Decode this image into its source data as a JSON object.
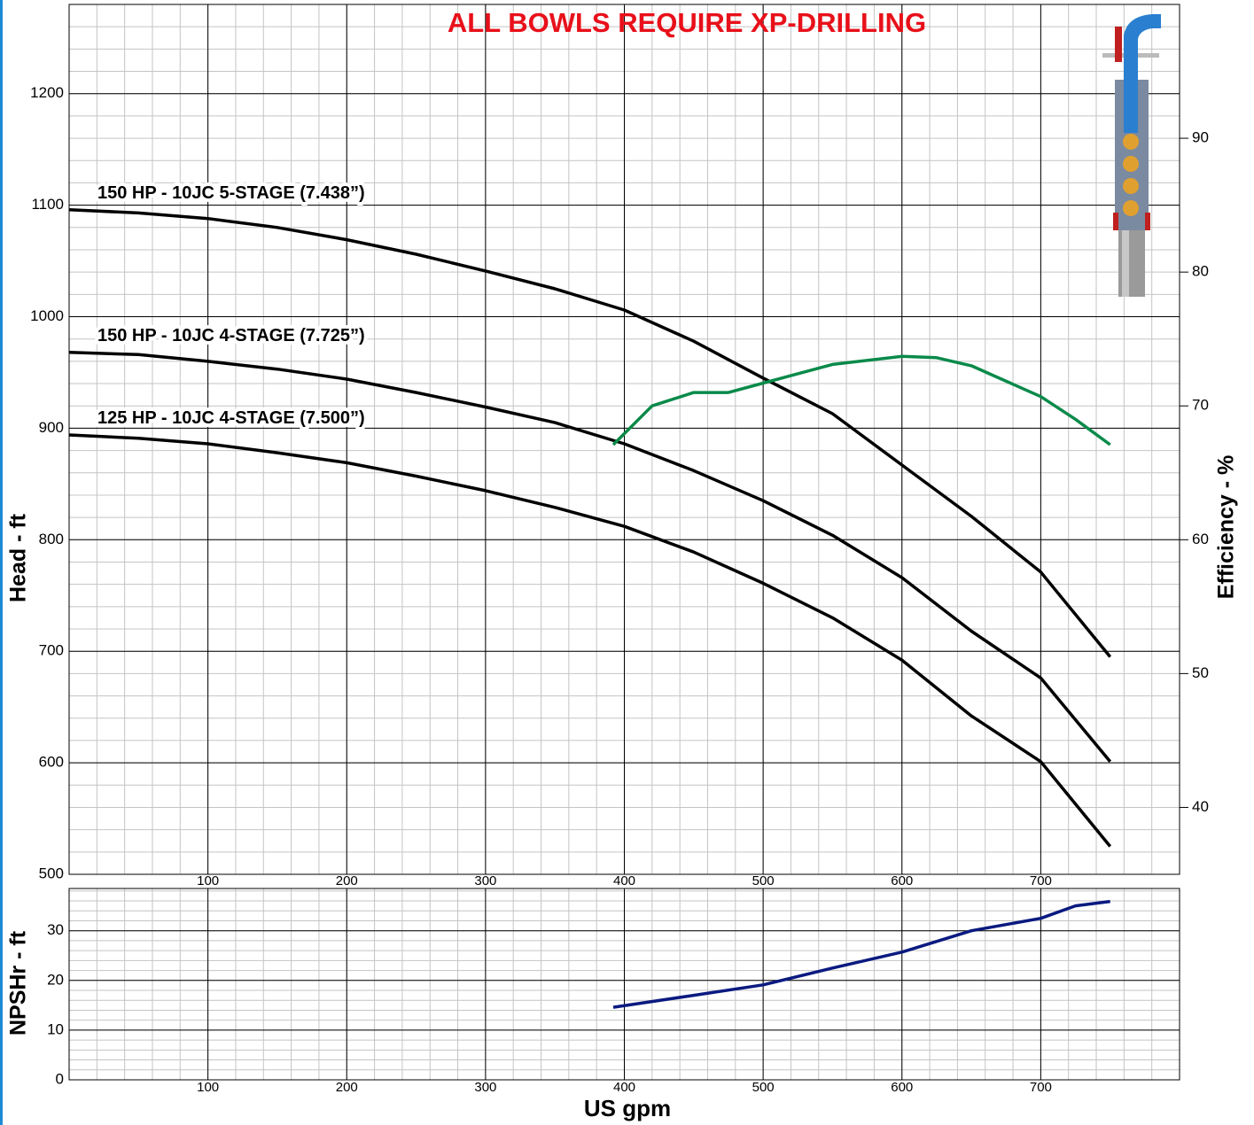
{
  "chart_data": [
    {
      "type": "line",
      "title": "ALL BOWLS REQUIRE XP-DRILLING",
      "ylabel": "Head - ft",
      "y2label": "Efficiency - %",
      "xlim": [
        0,
        800
      ],
      "xticks": [
        100,
        200,
        300,
        400,
        500,
        600,
        700
      ],
      "ylim": [
        500,
        1280
      ],
      "yticks": [
        500,
        600,
        700,
        800,
        900,
        1000,
        1100,
        1200
      ],
      "y2lim": [
        35,
        100
      ],
      "y2ticks": [
        40,
        50,
        60,
        70,
        80,
        90
      ],
      "grid": true,
      "xminor": 20,
      "yminor": 20,
      "series": [
        {
          "name": "150 HP - 10JC 5-STAGE (7.438”)",
          "color": "#000000",
          "x": [
            0,
            50,
            100,
            150,
            200,
            250,
            300,
            350,
            400,
            450,
            500,
            550,
            600,
            650,
            700,
            750
          ],
          "values": [
            1096,
            1093,
            1088,
            1080,
            1069,
            1056,
            1041,
            1025,
            1006,
            978,
            945,
            913,
            867,
            821,
            771,
            695
          ]
        },
        {
          "name": "150 HP - 10JC 4-STAGE (7.725”)",
          "color": "#000000",
          "x": [
            0,
            50,
            100,
            150,
            200,
            250,
            300,
            350,
            400,
            450,
            500,
            550,
            600,
            650,
            700,
            750
          ],
          "values": [
            968,
            966,
            960,
            953,
            944,
            932,
            919,
            905,
            886,
            862,
            835,
            804,
            766,
            718,
            676,
            601
          ]
        },
        {
          "name": "125 HP - 10JC 4-STAGE (7.500”)",
          "color": "#000000",
          "x": [
            0,
            50,
            100,
            150,
            200,
            250,
            300,
            350,
            400,
            450,
            500,
            550,
            600,
            650,
            700,
            750
          ],
          "values": [
            894,
            891,
            886,
            878,
            869,
            857,
            844,
            829,
            812,
            789,
            761,
            730,
            692,
            642,
            601,
            525
          ]
        },
        {
          "color": "#0a8a4a",
          "axis": "y2",
          "x": [
            392,
            420,
            450,
            475,
            500,
            550,
            600,
            625,
            650,
            700,
            725,
            750
          ],
          "values": [
            67.1,
            70.0,
            71.0,
            71.0,
            71.7,
            73.1,
            73.7,
            73.6,
            73.0,
            70.7,
            69.0,
            67.1
          ]
        }
      ]
    },
    {
      "type": "line",
      "ylabel": "NPSHr - ft",
      "xlabel": "US gpm",
      "xlim": [
        0,
        800
      ],
      "xticks": [
        100,
        200,
        300,
        400,
        500,
        600,
        700
      ],
      "ylim": [
        0,
        38.5
      ],
      "yticks": [
        0,
        10,
        20,
        30
      ],
      "grid": true,
      "xminor": 20,
      "yminor": 2,
      "series": [
        {
          "color": "#0a1a80",
          "x": [
            392,
            450,
            500,
            550,
            600,
            650,
            700,
            725,
            750
          ],
          "values": [
            14.6,
            17.0,
            19.1,
            22.5,
            25.7,
            30.0,
            32.5,
            35.0,
            35.9
          ]
        }
      ]
    }
  ]
}
